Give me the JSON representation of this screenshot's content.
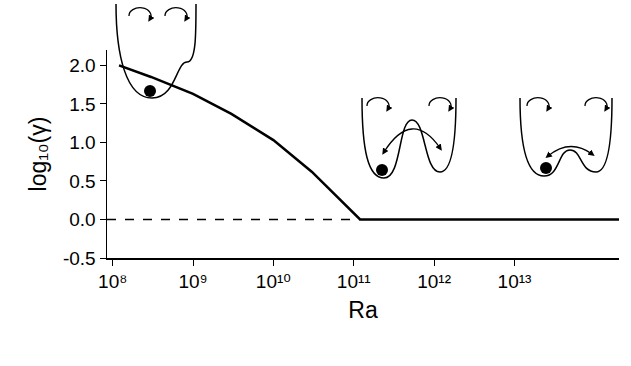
{
  "chart_data": {
    "type": "line",
    "x_label": "Ra",
    "y_label": "log₁₀(γ)",
    "log": "x",
    "grid": false,
    "xlim": [
      85000000,
      200000000000000
    ],
    "xticks": [
      {
        "value": 100000000,
        "label": "10⁸"
      },
      {
        "value": 1000000000,
        "label": "10⁹"
      },
      {
        "value": 10000000000,
        "label": "10¹⁰"
      },
      {
        "value": 100000000000,
        "label": "10¹¹"
      },
      {
        "value": 1000000000000,
        "label": "10¹²"
      },
      {
        "value": 10000000000000,
        "label": "10¹³"
      }
    ],
    "ylim": [
      -0.5,
      2.2
    ],
    "yticks": [
      -0.5,
      {
        "value": 0,
        "label": "0.0"
      },
      0.5,
      {
        "value": 1,
        "label": "1.0"
      },
      1.5,
      {
        "value": 2,
        "label": "2.0"
      }
    ],
    "series": [
      {
        "color": "#000000",
        "line_style": "solid",
        "x": [
          120000000,
          300000000,
          1000000000,
          3000000000,
          10000000000,
          30000000000,
          120000000000,
          200000000000000
        ],
        "values": [
          2.0,
          1.85,
          1.63,
          1.37,
          1.03,
          0.62,
          0.0,
          0.0
        ]
      },
      {
        "color": "#000000",
        "line_style": "dash",
        "x": [
          85000000,
          120000000000
        ],
        "values": [
          0,
          0
        ]
      }
    ]
  }
}
